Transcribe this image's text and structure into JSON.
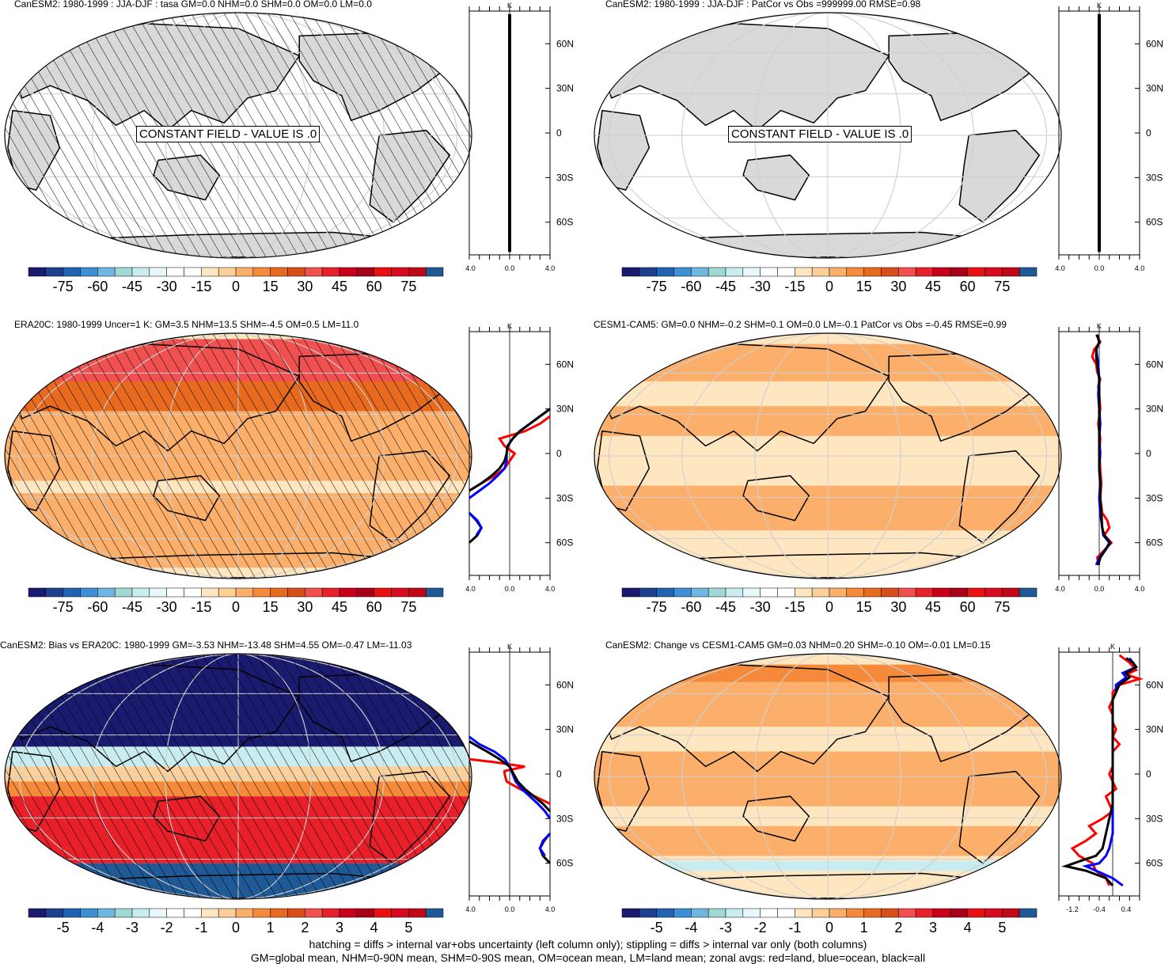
{
  "panels": [
    {
      "id": "p1",
      "title": "CanESM2: 1980-1999 : JJA-DJF : tasa GM=0.0 NHM=0.0 SHM=0.0 OM=0.0 LM=0.0",
      "fill": "const",
      "hatch": true,
      "const_label": "CONSTANT FIELD - VALUE IS .0",
      "colorbar": "cb1"
    },
    {
      "id": "p2",
      "title": "CanESM2: 1980-1999 : JJA-DJF : PatCor vs Obs =999999.00 RMSE=0.98",
      "fill": "const",
      "hatch": false,
      "const_label": "CONSTANT FIELD - VALUE IS .0",
      "colorbar": "cb1"
    },
    {
      "id": "p3",
      "title": "ERA20C: 1980-1999 Uncer=1 K: GM=3.5 NHM=13.5 SHM=-4.5 OM=0.5 LM=11.0",
      "fill": "era",
      "hatch": true,
      "const_label": "",
      "colorbar": "cb1"
    },
    {
      "id": "p4",
      "title": "CESM1-CAM5: GM=0.0 NHM=-0.2 SHM=0.1 OM=0.0 LM=-0.1 PatCor vs Obs =-0.45 RMSE=0.99",
      "fill": "cesm",
      "hatch": false,
      "const_label": "",
      "colorbar": "cb1"
    },
    {
      "id": "p5",
      "title": "CanESM2: Bias vs ERA20C: 1980-1999 GM=-3.53 NHM=-13.48 SHM=4.55 OM=-0.47 LM=-11.03",
      "fill": "bias",
      "hatch": true,
      "const_label": "",
      "colorbar": "cb2"
    },
    {
      "id": "p6",
      "title": "CanESM2: Change vs CESM1-CAM5 GM=0.03 NHM=0.20 SHM=-0.10 OM=-0.01 LM=0.15",
      "fill": "change",
      "hatch": false,
      "const_label": "",
      "colorbar": "cb2"
    }
  ],
  "chart_data": [
    {
      "type": "heatmap",
      "title": "CanESM2: 1980-1999 : JJA-DJF : tasa GM=0.0 NHM=0.0 SHM=0.0 OM=0.0 LM=0.0",
      "annotation": "CONSTANT FIELD - VALUE IS .0",
      "colorbar_ticks": [
        "-75",
        "-60",
        "-45",
        "-30",
        "-15",
        "0",
        "15",
        "30",
        "45",
        "60",
        "75"
      ],
      "zonal": {
        "unit": "K",
        "xlim": [
          -4,
          4
        ],
        "xticks": [
          "-4.0",
          "0.0",
          "4.0"
        ],
        "yticks": [
          "60N",
          "30N",
          "0",
          "30S",
          "60S"
        ],
        "series": [
          {
            "color": "#000000",
            "lat": [
              80,
              -80
            ],
            "values": [
              0,
              0
            ]
          }
        ]
      }
    },
    {
      "type": "heatmap",
      "title": "CanESM2: 1980-1999 : JJA-DJF : PatCor vs Obs =999999.00 RMSE=0.98",
      "annotation": "CONSTANT FIELD - VALUE IS .0",
      "colorbar_ticks": [
        "-75",
        "-60",
        "-45",
        "-30",
        "-15",
        "0",
        "15",
        "30",
        "45",
        "60",
        "75"
      ],
      "zonal": {
        "unit": "K",
        "xlim": [
          -4,
          4
        ],
        "xticks": [
          "-4.0",
          "0.0",
          "4.0"
        ],
        "yticks": [
          "60N",
          "30N",
          "0",
          "30S",
          "60S"
        ],
        "series": [
          {
            "color": "#000000",
            "lat": [
              80,
              -80
            ],
            "values": [
              0,
              0
            ]
          }
        ]
      }
    },
    {
      "type": "heatmap",
      "title": "ERA20C: 1980-1999 Uncer=1 K: GM=3.5 NHM=13.5 SHM=-4.5 OM=0.5 LM=11.0",
      "colorbar_ticks": [
        "-75",
        "-60",
        "-45",
        "-30",
        "-15",
        "0",
        "15",
        "30",
        "45",
        "60",
        "75"
      ],
      "zonal": {
        "unit": "K",
        "xlim": [
          -4,
          4
        ],
        "xticks": [
          "-4.0",
          "0.0",
          "4.0"
        ],
        "yticks": [
          "60N",
          "30N",
          "0",
          "30S",
          "60S"
        ],
        "series": [
          {
            "color": "#ff0000",
            "lat": [
              25,
              20,
              15,
              10,
              5,
              0,
              -5,
              -10,
              -15,
              -20,
              -25
            ],
            "values": [
              4,
              3,
              1.5,
              -1,
              -0.5,
              0.5,
              0,
              -0.5,
              -1.5,
              -2.8,
              -4
            ]
          },
          {
            "color": "#0000ff",
            "lat": [
              30,
              25,
              20,
              15,
              10,
              5,
              0,
              -5,
              -10,
              -15,
              -20,
              -25,
              -30
            ],
            "values": [
              4,
              3,
              2,
              1,
              0.3,
              -0.2,
              -0.3,
              -0.3,
              -0.5,
              -1.2,
              -2,
              -3,
              -4
            ]
          },
          {
            "color": "#000000",
            "lat": [
              30,
              25,
              20,
              15,
              10,
              5,
              0,
              -5,
              -10,
              -15,
              -20,
              -25
            ],
            "values": [
              4,
              3,
              2,
              1,
              0.3,
              -0.2,
              -0.3,
              -0.5,
              -1,
              -1.8,
              -2.8,
              -4
            ]
          },
          {
            "color": "#000000",
            "lat": [
              -40,
              -45,
              -50,
              -55,
              -60
            ],
            "values": [
              -4,
              -3.3,
              -2.8,
              -3.2,
              -4
            ]
          },
          {
            "color": "#0000ff",
            "lat": [
              -40,
              -45,
              -50,
              -55
            ],
            "values": [
              -4,
              -3.2,
              -2.8,
              -3.3
            ]
          }
        ]
      }
    },
    {
      "type": "heatmap",
      "title": "CESM1-CAM5: GM=0.0 NHM=-0.2 SHM=0.1 OM=0.0 LM=-0.1 PatCor vs Obs =-0.45 RMSE=0.99",
      "colorbar_ticks": [
        "-75",
        "-60",
        "-45",
        "-30",
        "-15",
        "0",
        "15",
        "30",
        "45",
        "60",
        "75"
      ],
      "zonal": {
        "unit": "K",
        "xlim": [
          -4,
          4
        ],
        "xticks": [
          "-4.0",
          "0.0",
          "4.0"
        ],
        "yticks": [
          "60N",
          "30N",
          "0",
          "30S",
          "60S"
        ],
        "series": [
          {
            "color": "#ff0000",
            "lat": [
              80,
              75,
              70,
              65,
              60,
              55,
              50,
              45,
              40,
              30,
              20,
              10,
              0,
              -10,
              -20,
              -30,
              -40,
              -45,
              -50,
              -55,
              -60,
              -65,
              -70,
              -75
            ],
            "values": [
              -0.3,
              0.1,
              -0.5,
              -0.7,
              -0.3,
              -0.2,
              0.1,
              -0.1,
              0,
              0.1,
              -0.1,
              0.1,
              0,
              0.1,
              0.2,
              0.1,
              0.3,
              0.8,
              1.0,
              0.5,
              1.2,
              0.5,
              -0.2,
              0
            ]
          },
          {
            "color": "#0000ff",
            "lat": [
              80,
              75,
              70,
              65,
              60,
              50,
              40,
              30,
              20,
              10,
              0,
              -10,
              -20,
              -30,
              -40,
              -50,
              -55,
              -60,
              -65,
              -70,
              -75
            ],
            "values": [
              -0.2,
              0,
              -0.3,
              -0.2,
              -0.1,
              0,
              -0.1,
              0,
              0.1,
              0,
              0.1,
              0,
              0.1,
              0,
              0.1,
              0.3,
              0.4,
              1.0,
              0.6,
              0,
              -0.3
            ]
          },
          {
            "color": "#000000",
            "lat": [
              80,
              75,
              70,
              65,
              60,
              50,
              40,
              30,
              20,
              10,
              0,
              -10,
              -20,
              -30,
              -40,
              -50,
              -55,
              -60,
              -65,
              -70,
              -75
            ],
            "values": [
              -0.2,
              0,
              -0.3,
              -0.3,
              -0.2,
              0,
              0,
              0,
              0,
              0,
              0,
              0,
              0.1,
              0.1,
              0.2,
              0.3,
              0.5,
              1.1,
              0.6,
              0.1,
              -0.1
            ]
          }
        ]
      }
    },
    {
      "type": "heatmap",
      "title": "CanESM2: Bias vs ERA20C: 1980-1999 GM=-3.53 NHM=-13.48 SHM=4.55 OM=-0.47 LM=-11.03",
      "colorbar_ticks": [
        "-5",
        "-4",
        "-3",
        "-2",
        "-1",
        "0",
        "1",
        "2",
        "3",
        "4",
        "5"
      ],
      "zonal": {
        "unit": "K",
        "xlim": [
          -4,
          4
        ],
        "xticks": [
          "-4.0",
          "0.0",
          "4.0"
        ],
        "yticks": [
          "60N",
          "30N",
          "0",
          "30S",
          "60S"
        ],
        "series": [
          {
            "color": "#ff0000",
            "lat": [
              10,
              8,
              5,
              2,
              0,
              -5,
              -10,
              -15,
              -20
            ],
            "values": [
              -4,
              -1.5,
              1.5,
              -0.5,
              -0.5,
              -0.3,
              1,
              2.5,
              4
            ]
          },
          {
            "color": "#0000ff",
            "lat": [
              25,
              20,
              15,
              10,
              5,
              0,
              -5,
              -10,
              -15,
              -20,
              -25,
              -30
            ],
            "values": [
              -4,
              -3,
              -1.5,
              -0.5,
              0,
              0.3,
              0.6,
              1.2,
              2,
              2.8,
              3.5,
              4
            ]
          },
          {
            "color": "#000000",
            "lat": [
              22,
              18,
              15,
              10,
              5,
              0,
              -5,
              -10,
              -15,
              -20,
              -25
            ],
            "values": [
              -4,
              -3,
              -2.2,
              -1,
              0,
              0.4,
              0.8,
              1.5,
              2.4,
              3.3,
              4
            ]
          },
          {
            "color": "#000000",
            "lat": [
              -40,
              -45,
              -50,
              -55,
              -60
            ],
            "values": [
              4,
              3.4,
              3,
              3.3,
              4
            ]
          },
          {
            "color": "#0000ff",
            "lat": [
              -40,
              -45,
              -50,
              -55
            ],
            "values": [
              4,
              3.3,
              3,
              3.5
            ]
          }
        ]
      }
    },
    {
      "type": "heatmap",
      "title": "CanESM2: Change vs CESM1-CAM5 GM=0.03 NHM=0.20 SHM=-0.10 OM=-0.01 LM=0.15",
      "colorbar_ticks": [
        "-5",
        "-4",
        "-3",
        "-2",
        "-1",
        "0",
        "1",
        "2",
        "3",
        "4",
        "5"
      ],
      "zonal": {
        "unit": "K",
        "xlim": [
          -1.6,
          0.8
        ],
        "xticks": [
          "-1.2",
          "-0.4",
          "0.4"
        ],
        "yticks": [
          "60N",
          "30N",
          "0",
          "30S",
          "60S"
        ],
        "series": [
          {
            "color": "#ff0000",
            "lat": [
              80,
              75,
              70,
              67,
              64,
              60,
              55,
              50,
              45,
              40,
              35,
              30,
              25,
              20,
              15,
              10,
              5,
              0,
              -5,
              -10,
              -15,
              -20,
              -25,
              -30,
              -35,
              -40,
              -45,
              -50,
              -55,
              -60,
              -65,
              -70,
              -75
            ],
            "values": [
              0.2,
              0.5,
              0.7,
              0.4,
              0.8,
              0.2,
              0,
              0,
              -0.1,
              0,
              0,
              0.1,
              0,
              0.2,
              0,
              0,
              0,
              -0.1,
              0,
              0.1,
              -0.2,
              -0.1,
              0,
              -0.3,
              -0.7,
              -0.5,
              -0.8,
              -1.2,
              -1.0,
              -0.6,
              -0.5,
              -0.2,
              -0.1
            ]
          },
          {
            "color": "#0000ff",
            "lat": [
              78,
              75,
              72,
              68,
              65,
              60,
              55,
              50,
              45,
              40,
              30,
              20,
              10,
              0,
              -10,
              -20,
              -30,
              -40,
              -50,
              -55,
              -60,
              -62,
              -65,
              -70,
              -75
            ],
            "values": [
              0.5,
              0.6,
              0.7,
              0.3,
              0.4,
              0.1,
              0.1,
              0,
              0,
              0,
              0,
              0,
              0,
              0,
              0,
              0,
              0,
              0,
              -0.1,
              -0.2,
              -0.4,
              -0.8,
              -0.5,
              0,
              0.3
            ]
          },
          {
            "color": "#000000",
            "lat": [
              78,
              75,
              72,
              68,
              65,
              60,
              55,
              50,
              45,
              40,
              30,
              20,
              10,
              0,
              -10,
              -20,
              -30,
              -40,
              -50,
              -55,
              -58,
              -62,
              -65,
              -70,
              -75
            ],
            "values": [
              0.4,
              0.6,
              0.7,
              0.4,
              0.5,
              0.2,
              0.1,
              0,
              0,
              0,
              0,
              0,
              0,
              0,
              0,
              0,
              -0.1,
              -0.2,
              -0.3,
              -0.5,
              -0.9,
              -1.4,
              -0.8,
              -0.2,
              0
            ]
          }
        ]
      }
    }
  ],
  "colorbars": {
    "cb1": {
      "labels": [
        "-75",
        "-60",
        "-45",
        "-30",
        "-15",
        "0",
        "15",
        "30",
        "45",
        "60",
        "75"
      ]
    },
    "cb2": {
      "labels": [
        "-5",
        "-4",
        "-3",
        "-2",
        "-1",
        "0",
        "1",
        "2",
        "3",
        "4",
        "5"
      ]
    },
    "colors": [
      "#1a1a6e",
      "#1f3f8f",
      "#2163b0",
      "#3d8fd6",
      "#6fb7e0",
      "#9fd8d4",
      "#c8ecf0",
      "#e8f8fa",
      "#ffffff",
      "#ffffff",
      "#fee6c0",
      "#fdd09a",
      "#fbaf6a",
      "#f58b3a",
      "#e86a1e",
      "#d84e18",
      "#f05050",
      "#e8202a",
      "#c8001c",
      "#a8001a",
      "#e81010",
      "#d80a20",
      "#c00818",
      "#1f5a96"
    ]
  },
  "zonal_unit": "K",
  "footnote_1": "hatching = diffs > internal var+obs uncertainty (left column only); stippling = diffs > internal var only (both columns)",
  "footnote_2": "GM=global mean, NHM=0-90N mean, SHM=0-90S mean, OM=ocean mean, LM=land mean; zonal avgs: red=land, blue=ocean, black=all"
}
